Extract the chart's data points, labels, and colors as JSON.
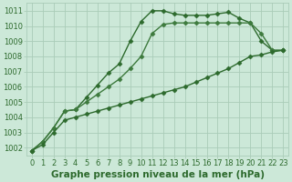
{
  "bg_color": "#cce8d8",
  "grid_color": "#aaccb8",
  "line_color": "#2d6a2d",
  "line_color2": "#3d7a3d",
  "xlabel": "Graphe pression niveau de la mer (hPa)",
  "xlim": [
    -0.5,
    23.5
  ],
  "ylim": [
    1001.5,
    1011.5
  ],
  "yticks": [
    1002,
    1003,
    1004,
    1005,
    1006,
    1007,
    1008,
    1009,
    1010,
    1011
  ],
  "xticks": [
    0,
    1,
    2,
    3,
    4,
    5,
    6,
    7,
    8,
    9,
    10,
    11,
    12,
    13,
    14,
    15,
    16,
    17,
    18,
    19,
    20,
    21,
    22,
    23
  ],
  "series": [
    {
      "name": "line1_top",
      "x": [
        0,
        1,
        2,
        3,
        4,
        5,
        6,
        7,
        8,
        9,
        10,
        11,
        12,
        13,
        14,
        15,
        16,
        17,
        18,
        19,
        20,
        21,
        22,
        23
      ],
      "y": [
        1001.8,
        1002.4,
        1003.3,
        1004.4,
        1004.5,
        1005.3,
        1006.1,
        1006.9,
        1007.5,
        1009.0,
        1010.3,
        1011.0,
        1011.0,
        1010.8,
        1010.7,
        1010.7,
        1010.7,
        1010.8,
        1010.9,
        1010.5,
        1010.2,
        1009.0,
        1008.4,
        1008.4
      ],
      "marker": "D",
      "markersize": 2.5,
      "linewidth": 1.0,
      "color": "#2d6a2d"
    },
    {
      "name": "line2_mid",
      "x": [
        0,
        1,
        2,
        3,
        4,
        5,
        6,
        7,
        8,
        9,
        10,
        11,
        12,
        13,
        14,
        15,
        16,
        17,
        18,
        19,
        20,
        21,
        22,
        23
      ],
      "y": [
        1001.8,
        1002.4,
        1003.3,
        1004.4,
        1004.5,
        1005.0,
        1005.5,
        1006.0,
        1006.5,
        1007.2,
        1008.0,
        1009.5,
        1010.1,
        1010.2,
        1010.2,
        1010.2,
        1010.2,
        1010.2,
        1010.2,
        1010.2,
        1010.2,
        1009.5,
        1008.4,
        1008.4
      ],
      "marker": "D",
      "markersize": 2.5,
      "linewidth": 1.0,
      "color": "#3d7a3d"
    },
    {
      "name": "line3_bottom",
      "x": [
        0,
        1,
        2,
        3,
        4,
        5,
        6,
        7,
        8,
        9,
        10,
        11,
        12,
        13,
        14,
        15,
        16,
        17,
        18,
        19,
        20,
        21,
        22,
        23
      ],
      "y": [
        1001.8,
        1002.2,
        1003.0,
        1003.8,
        1004.0,
        1004.2,
        1004.4,
        1004.6,
        1004.8,
        1005.0,
        1005.2,
        1005.4,
        1005.6,
        1005.8,
        1006.0,
        1006.3,
        1006.6,
        1006.9,
        1007.2,
        1007.6,
        1008.0,
        1008.1,
        1008.3,
        1008.4
      ],
      "marker": "D",
      "markersize": 2.5,
      "linewidth": 1.0,
      "color": "#2d6a2d"
    }
  ],
  "xlabel_fontsize": 7.5,
  "tick_fontsize": 6,
  "tick_color": "#2d6a2d"
}
